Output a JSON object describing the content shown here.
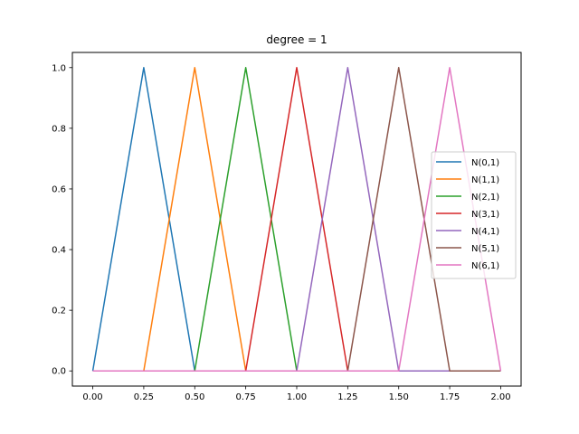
{
  "chart_data": {
    "type": "line",
    "title": "degree = 1",
    "xlabel": "",
    "ylabel": "",
    "xlim": [
      -0.1,
      2.1
    ],
    "ylim": [
      -0.05,
      1.05
    ],
    "xticks": [
      0.0,
      0.25,
      0.5,
      0.75,
      1.0,
      1.25,
      1.5,
      1.75,
      2.0
    ],
    "xtick_labels": [
      "0.00",
      "0.25",
      "0.50",
      "0.75",
      "1.00",
      "1.25",
      "1.50",
      "1.75",
      "2.00"
    ],
    "yticks": [
      0.0,
      0.2,
      0.4,
      0.6,
      0.8,
      1.0
    ],
    "ytick_labels": [
      "0.0",
      "0.2",
      "0.4",
      "0.6",
      "0.8",
      "1.0"
    ],
    "grid": false,
    "legend_position": "center-right",
    "series": [
      {
        "name": "N(0,1)",
        "color": "#1f77b4",
        "x": [
          0.0,
          0.25,
          0.5,
          2.0
        ],
        "y": [
          0.0,
          1.0,
          0.0,
          0.0
        ]
      },
      {
        "name": "N(1,1)",
        "color": "#ff7f0e",
        "x": [
          0.0,
          0.25,
          0.5,
          0.75,
          2.0
        ],
        "y": [
          0.0,
          0.0,
          1.0,
          0.0,
          0.0
        ]
      },
      {
        "name": "N(2,1)",
        "color": "#2ca02c",
        "x": [
          0.0,
          0.5,
          0.75,
          1.0,
          2.0
        ],
        "y": [
          0.0,
          0.0,
          1.0,
          0.0,
          0.0
        ]
      },
      {
        "name": "N(3,1)",
        "color": "#d62728",
        "x": [
          0.0,
          0.75,
          1.0,
          1.25,
          2.0
        ],
        "y": [
          0.0,
          0.0,
          1.0,
          0.0,
          0.0
        ]
      },
      {
        "name": "N(4,1)",
        "color": "#9467bd",
        "x": [
          0.0,
          1.0,
          1.25,
          1.5,
          2.0
        ],
        "y": [
          0.0,
          0.0,
          1.0,
          0.0,
          0.0
        ]
      },
      {
        "name": "N(5,1)",
        "color": "#8c564b",
        "x": [
          0.0,
          1.25,
          1.5,
          1.75,
          2.0
        ],
        "y": [
          0.0,
          0.0,
          1.0,
          0.0,
          0.0
        ]
      },
      {
        "name": "N(6,1)",
        "color": "#e377c2",
        "x": [
          0.0,
          1.5,
          1.75,
          2.0
        ],
        "y": [
          0.0,
          0.0,
          1.0,
          0.0
        ]
      }
    ]
  }
}
